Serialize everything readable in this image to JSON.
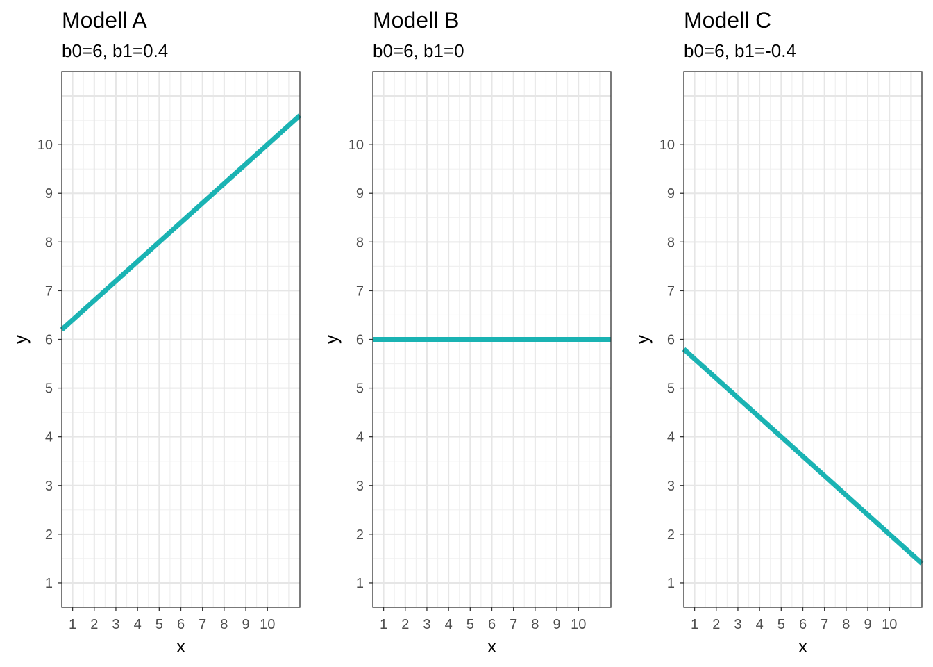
{
  "chart_data": [
    {
      "type": "line",
      "title": "Modell A",
      "subtitle": "b0=6, b1=0.4",
      "xlabel": "x",
      "ylabel": "y",
      "xlim": [
        0.5,
        11.5
      ],
      "ylim": [
        0.5,
        11.5
      ],
      "xticks": [
        "1",
        "2",
        "3",
        "4",
        "5",
        "6",
        "7",
        "8",
        "9",
        "10"
      ],
      "yticks": [
        "1",
        "2",
        "3",
        "4",
        "5",
        "6",
        "7",
        "8",
        "9",
        "10"
      ],
      "intercept": 6,
      "slope": 0.4,
      "x": [
        0.5,
        11.5
      ],
      "y": [
        6.2,
        10.6
      ],
      "color": "#1ab3b3",
      "grid": true
    },
    {
      "type": "line",
      "title": "Modell B",
      "subtitle": "b0=6, b1=0",
      "xlabel": "x",
      "ylabel": "y",
      "xlim": [
        0.5,
        11.5
      ],
      "ylim": [
        0.5,
        11.5
      ],
      "xticks": [
        "1",
        "2",
        "3",
        "4",
        "5",
        "6",
        "7",
        "8",
        "9",
        "10"
      ],
      "yticks": [
        "1",
        "2",
        "3",
        "4",
        "5",
        "6",
        "7",
        "8",
        "9",
        "10"
      ],
      "intercept": 6,
      "slope": 0,
      "x": [
        0.5,
        11.5
      ],
      "y": [
        6,
        6
      ],
      "color": "#1ab3b3",
      "grid": true
    },
    {
      "type": "line",
      "title": "Modell C",
      "subtitle": "b0=6, b1=-0.4",
      "xlabel": "x",
      "ylabel": "y",
      "xlim": [
        0.5,
        11.5
      ],
      "ylim": [
        0.5,
        11.5
      ],
      "xticks": [
        "1",
        "2",
        "3",
        "4",
        "5",
        "6",
        "7",
        "8",
        "9",
        "10"
      ],
      "yticks": [
        "1",
        "2",
        "3",
        "4",
        "5",
        "6",
        "7",
        "8",
        "9",
        "10"
      ],
      "intercept": 6,
      "slope": -0.4,
      "x": [
        0.5,
        11.5
      ],
      "y": [
        5.8,
        1.4
      ],
      "color": "#1ab3b3",
      "grid": true
    }
  ]
}
